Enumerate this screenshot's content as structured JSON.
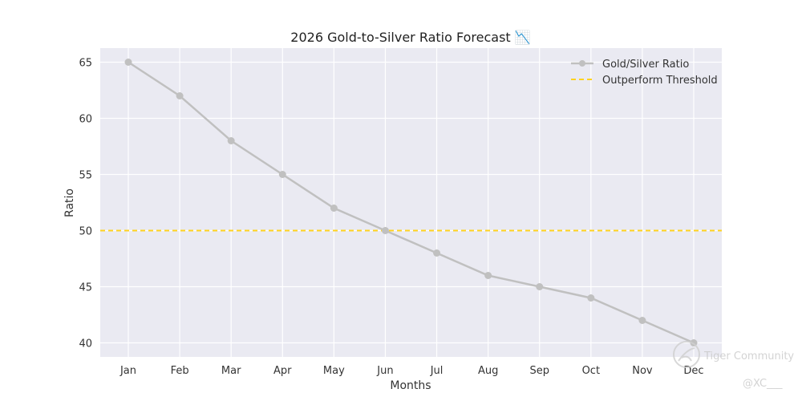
{
  "chart_data": {
    "type": "line",
    "title": "2026 Gold-to-Silver Ratio Forecast 📉",
    "xlabel": "Months",
    "ylabel": "Ratio",
    "categories": [
      "Jan",
      "Feb",
      "Mar",
      "Apr",
      "May",
      "Jun",
      "Jul",
      "Aug",
      "Sep",
      "Oct",
      "Nov",
      "Dec"
    ],
    "series": [
      {
        "name": "Gold/Silver Ratio",
        "values": [
          65,
          62,
          58,
          55,
          52,
          50,
          48,
          46,
          45,
          44,
          42,
          40
        ],
        "color": "#c0c0c0"
      }
    ],
    "threshold": {
      "name": "Outperform Threshold",
      "value": 50,
      "color": "#ffd21f",
      "style": "dashed"
    },
    "ylim": [
      38.75,
      66.25
    ],
    "yticks": [
      40,
      45,
      50,
      55,
      60,
      65
    ],
    "grid": true,
    "legend_position": "top-right",
    "background": "#eaeaf2"
  },
  "watermark": {
    "brand": "Tiger Community",
    "handle": "@XC___"
  }
}
